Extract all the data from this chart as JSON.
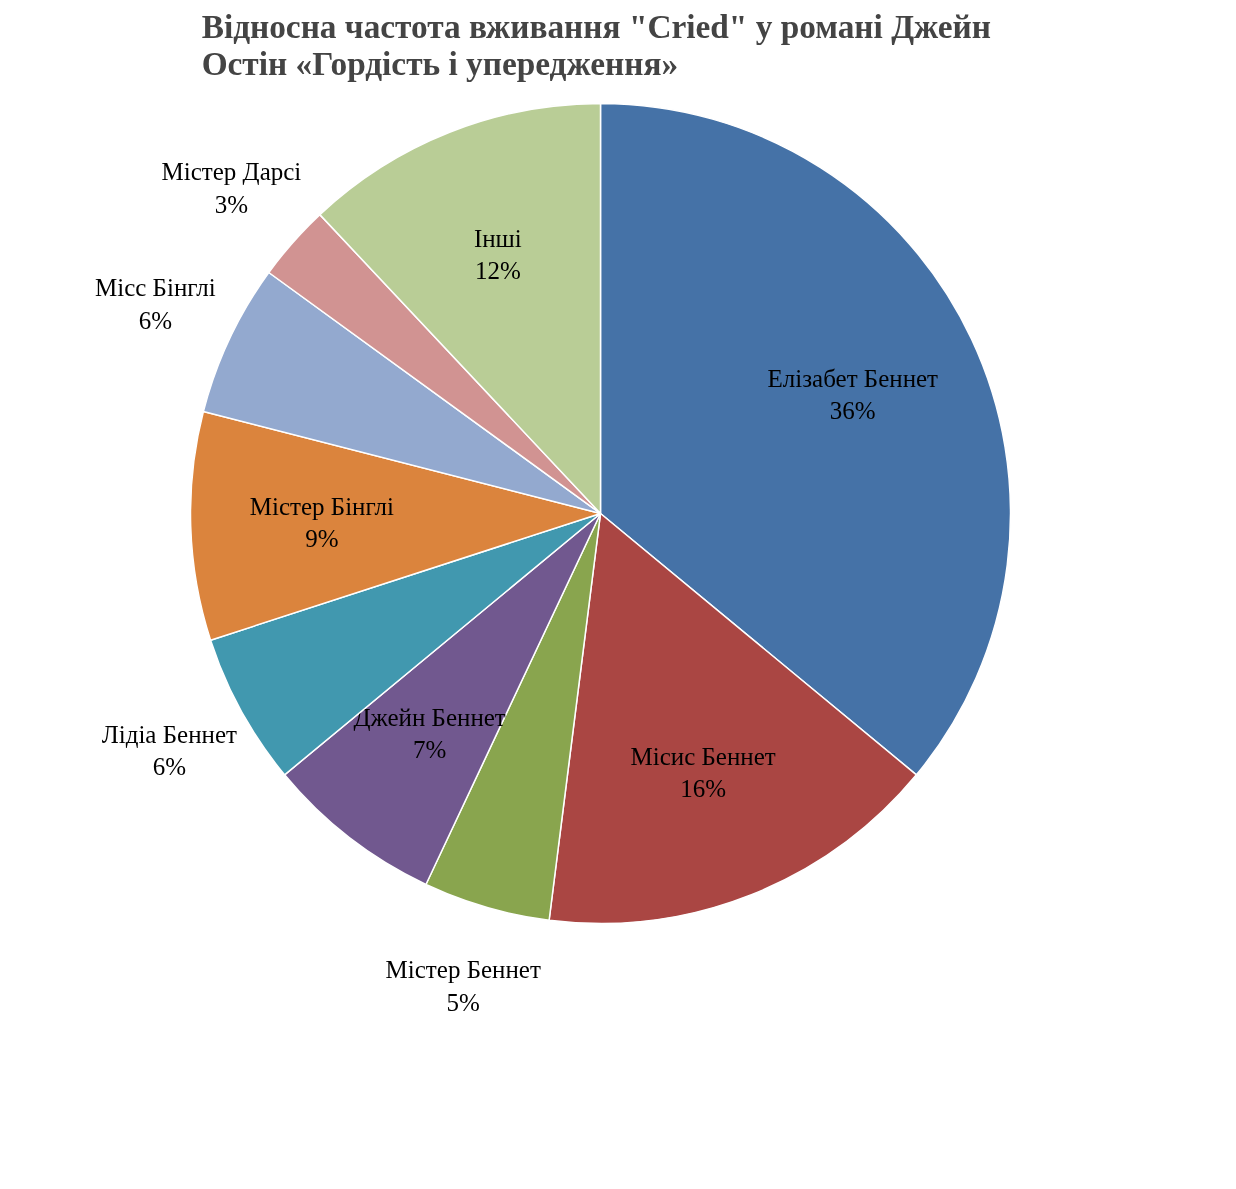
{
  "chart_data": {
    "type": "pie",
    "title": "Відносна частота  вживання \"Cried\" у романі Джейн\nОстін  «Гордість і упередження»",
    "categories": [
      "Елізабет Беннет",
      "Місис Беннет",
      "Містер Беннет",
      "Джейн Беннет",
      "Лідіа Беннет",
      "Містер Бінглі",
      "Місс Бінглі",
      "Містер Дарсі",
      "Інші"
    ],
    "values": [
      36,
      16,
      5,
      7,
      6,
      9,
      6,
      3,
      12
    ],
    "colors": [
      "#4572a7",
      "#aa4643",
      "#89a54e",
      "#71588f",
      "#4198af",
      "#db843d",
      "#93a9cf",
      "#d19392",
      "#b9cd96"
    ],
    "value_labels": [
      "36%",
      "16%",
      "5%",
      "7%",
      "6%",
      "9%",
      "6%",
      "3%",
      "12%"
    ]
  }
}
